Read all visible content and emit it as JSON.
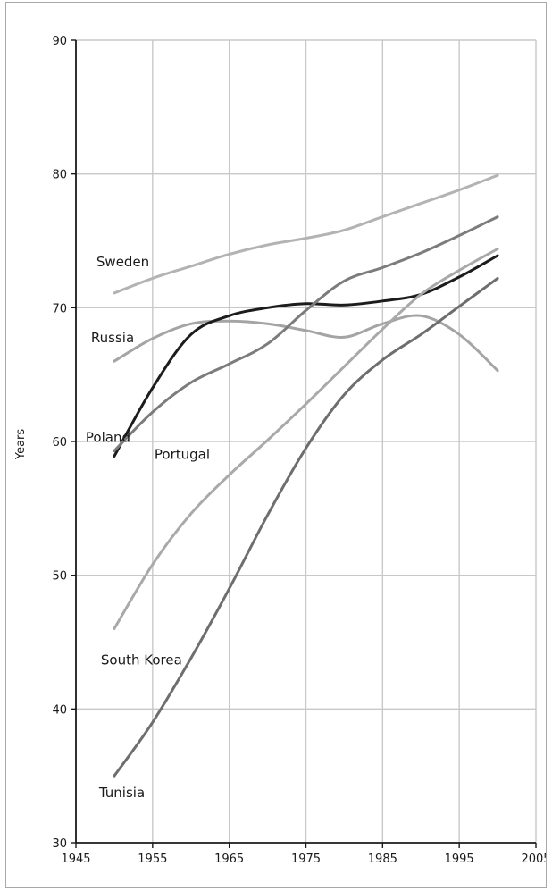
{
  "chart_data": {
    "type": "line",
    "title": "",
    "xlabel": "",
    "ylabel": "Years",
    "xlim": [
      1945,
      2005
    ],
    "ylim": [
      30,
      90
    ],
    "x_ticks": [
      1945,
      1955,
      1965,
      1975,
      1985,
      1995,
      2005
    ],
    "y_ticks": [
      30,
      40,
      50,
      60,
      70,
      80,
      90
    ],
    "grid": true,
    "legend": "none",
    "series": [
      {
        "name": "Sweden",
        "color": "#b3b3b3",
        "x": [
          1950,
          1955,
          1960,
          1965,
          1970,
          1975,
          1980,
          1985,
          1990,
          1995,
          2000
        ],
        "values": [
          71.1,
          72.2,
          73.1,
          74.0,
          74.7,
          75.2,
          75.8,
          76.8,
          77.8,
          78.8,
          79.9
        ]
      },
      {
        "name": "Russia",
        "color": "#a4a4a4",
        "x": [
          1950,
          1955,
          1960,
          1965,
          1970,
          1975,
          1980,
          1985,
          1990,
          1995,
          2000
        ],
        "values": [
          66.0,
          67.7,
          68.8,
          69.0,
          68.8,
          68.3,
          67.8,
          68.8,
          69.4,
          68.0,
          65.3
        ]
      },
      {
        "name": "Poland",
        "color": "#1c1c1c",
        "x": [
          1950,
          1955,
          1960,
          1965,
          1970,
          1975,
          1980,
          1985,
          1990,
          1995,
          2000
        ],
        "values": [
          58.9,
          64.0,
          68.0,
          69.4,
          70.0,
          70.3,
          70.2,
          70.5,
          71.0,
          72.3,
          73.9
        ]
      },
      {
        "name": "Portugal",
        "color": "#7c7c7c",
        "x": [
          1950,
          1955,
          1960,
          1965,
          1970,
          1975,
          1980,
          1985,
          1990,
          1995,
          2000
        ],
        "values": [
          59.3,
          62.2,
          64.4,
          65.8,
          67.3,
          69.8,
          72.0,
          73.0,
          74.1,
          75.4,
          76.8
        ]
      },
      {
        "name": "South Korea",
        "color": "#a9a9a9",
        "x": [
          1950,
          1955,
          1960,
          1965,
          1970,
          1975,
          1980,
          1985,
          1990,
          1995,
          2000
        ],
        "values": [
          46.0,
          50.8,
          54.6,
          57.5,
          60.1,
          62.8,
          65.6,
          68.4,
          71.0,
          72.8,
          74.4
        ]
      },
      {
        "name": "Tunisia",
        "color": "#6e6e6e",
        "x": [
          1950,
          1955,
          1960,
          1965,
          1970,
          1975,
          1980,
          1985,
          1990,
          1995,
          2000
        ],
        "values": [
          35.0,
          39.0,
          43.8,
          49.0,
          54.5,
          59.5,
          63.5,
          66.1,
          68.0,
          70.1,
          72.2
        ]
      }
    ]
  }
}
